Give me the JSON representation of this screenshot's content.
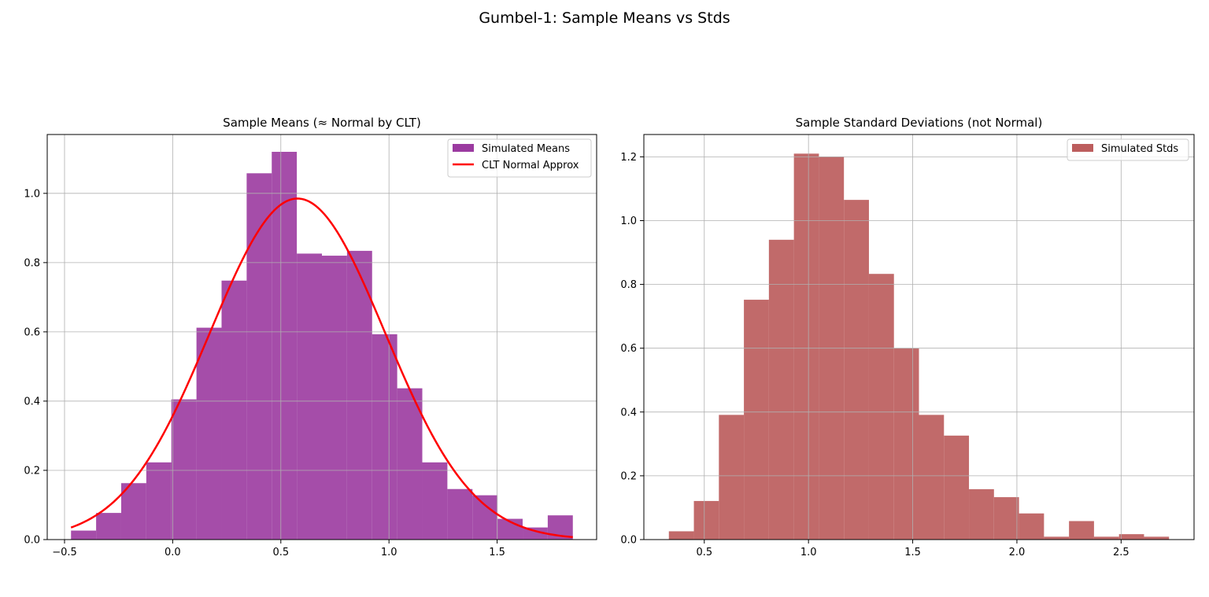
{
  "figure": {
    "suptitle": "Gumbel-1: Sample Means vs Stds",
    "grid": true
  },
  "chart_data": [
    {
      "type": "bar",
      "title": "Sample Means (≈ Normal by CLT)",
      "xlabel": "",
      "ylabel": "",
      "xlim": [
        -0.58,
        1.96
      ],
      "ylim": [
        0,
        1.17
      ],
      "xticks": [
        -0.5,
        0.0,
        0.5,
        1.0,
        1.5
      ],
      "xtick_labels": [
        "−0.5",
        "0.0",
        "0.5",
        "1.0",
        "1.5"
      ],
      "yticks": [
        0.0,
        0.2,
        0.4,
        0.6,
        0.8,
        1.0
      ],
      "ytick_labels": [
        "0.0",
        "0.2",
        "0.4",
        "0.6",
        "0.8",
        "1.0"
      ],
      "legend_position": "upper right",
      "series": [
        {
          "name": "Simulated Means",
          "kind": "histogram",
          "color": "#9b3aa0",
          "bin_edges": [
            -0.47,
            -0.354,
            -0.238,
            -0.122,
            -0.006,
            0.11,
            0.226,
            0.342,
            0.458,
            0.574,
            0.69,
            0.806,
            0.922,
            1.038,
            1.154,
            1.27,
            1.386,
            1.502,
            1.618,
            1.734,
            1.85
          ],
          "values": [
            0.026,
            0.077,
            0.163,
            0.223,
            0.405,
            0.612,
            0.748,
            1.058,
            1.12,
            0.826,
            0.82,
            0.834,
            0.593,
            0.437,
            0.223,
            0.146,
            0.128,
            0.06,
            0.035,
            0.07
          ]
        },
        {
          "name": "CLT Normal Approx",
          "kind": "line",
          "color": "#ff0000",
          "mean": 0.577,
          "sd": 0.405,
          "x_range": [
            -0.47,
            1.85
          ]
        }
      ]
    },
    {
      "type": "bar",
      "title": "Sample Standard Deviations (not Normal)",
      "xlabel": "",
      "ylabel": "",
      "xlim": [
        0.21,
        2.85
      ],
      "ylim": [
        0,
        1.27
      ],
      "xticks": [
        0.5,
        1.0,
        1.5,
        2.0,
        2.5
      ],
      "xtick_labels": [
        "0.5",
        "1.0",
        "1.5",
        "2.0",
        "2.5"
      ],
      "yticks": [
        0.0,
        0.2,
        0.4,
        0.6,
        0.8,
        1.0,
        1.2
      ],
      "ytick_labels": [
        "0.0",
        "0.2",
        "0.4",
        "0.6",
        "0.8",
        "1.0",
        "1.2"
      ],
      "legend_position": "upper right",
      "series": [
        {
          "name": "Simulated Stds",
          "kind": "histogram",
          "color": "#bc5d5d",
          "bin_edges": [
            0.33,
            0.45,
            0.57,
            0.69,
            0.81,
            0.93,
            1.05,
            1.17,
            1.29,
            1.41,
            1.53,
            1.65,
            1.77,
            1.89,
            2.01,
            2.13,
            2.25,
            2.37,
            2.49,
            2.61,
            2.73
          ],
          "values": [
            0.026,
            0.121,
            0.391,
            0.752,
            0.94,
            1.21,
            1.2,
            1.065,
            0.833,
            0.6,
            0.391,
            0.326,
            0.158,
            0.133,
            0.082,
            0.009,
            0.058,
            0.009,
            0.017,
            0.009
          ]
        }
      ]
    }
  ]
}
